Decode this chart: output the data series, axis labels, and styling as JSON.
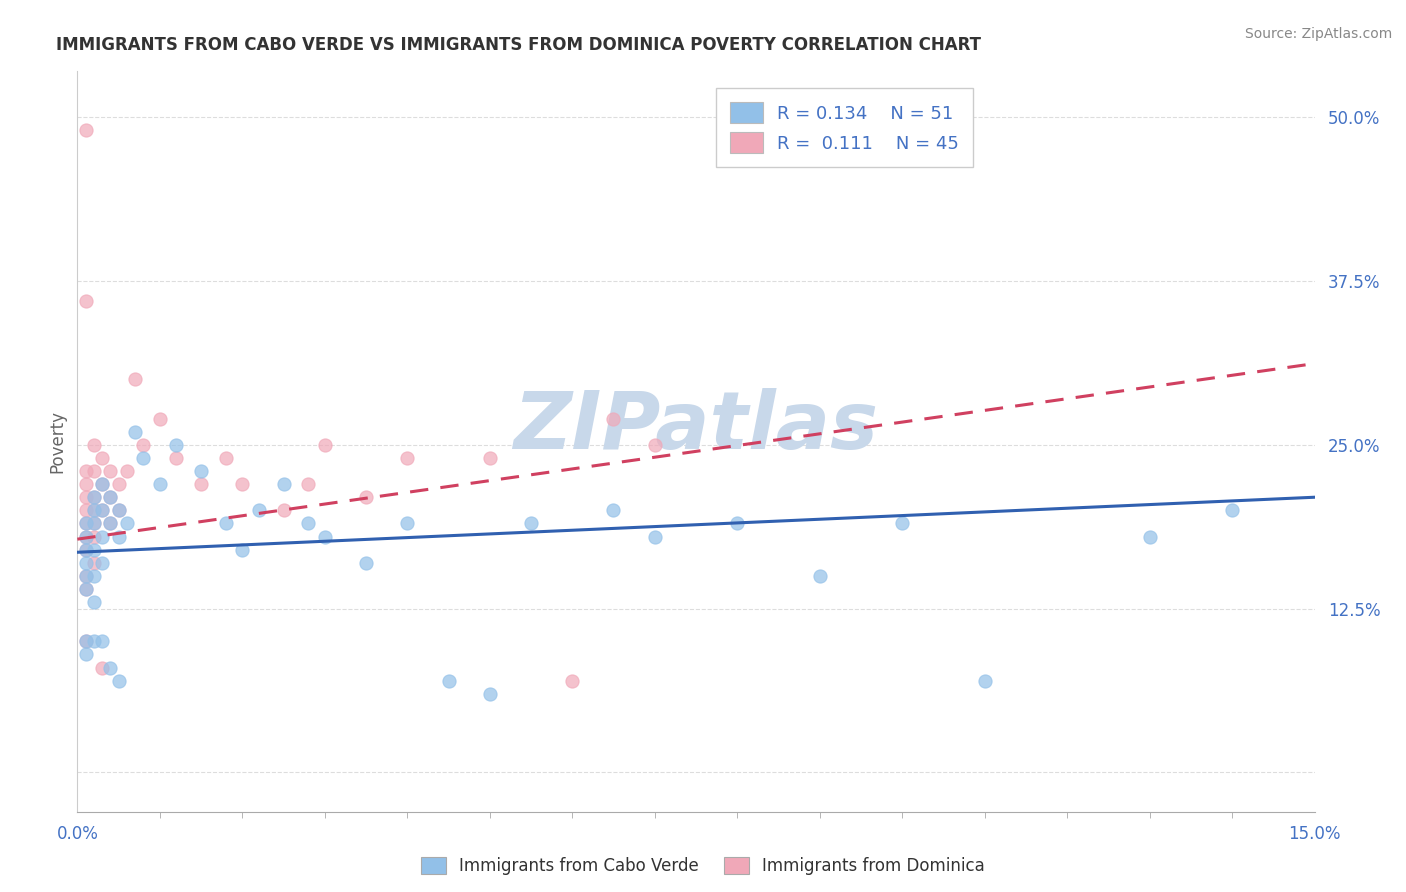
{
  "title": "IMMIGRANTS FROM CABO VERDE VS IMMIGRANTS FROM DOMINICA POVERTY CORRELATION CHART",
  "source": "Source: ZipAtlas.com",
  "ylabel": "Poverty",
  "yticks": [
    0.0,
    0.125,
    0.25,
    0.375,
    0.5
  ],
  "ytick_labels": [
    "",
    "12.5%",
    "25.0%",
    "37.5%",
    "50.0%"
  ],
  "xlim": [
    0.0,
    0.15
  ],
  "ylim": [
    -0.03,
    0.535
  ],
  "legend_R1": "0.134",
  "legend_N1": "51",
  "legend_R2": "0.111",
  "legend_N2": "45",
  "blue_color": "#92c0e8",
  "pink_color": "#f0a8b8",
  "blue_line_color": "#3060b0",
  "pink_line_color": "#d04060",
  "watermark": "ZIPatlas",
  "watermark_color": "#c8d8ea",
  "bg_color": "#ffffff",
  "grid_color": "#dddddd",
  "cabo_verde_x": [
    0.001,
    0.001,
    0.001,
    0.001,
    0.001,
    0.001,
    0.001,
    0.001,
    0.002,
    0.002,
    0.002,
    0.002,
    0.002,
    0.002,
    0.002,
    0.003,
    0.003,
    0.003,
    0.003,
    0.003,
    0.004,
    0.004,
    0.004,
    0.005,
    0.005,
    0.005,
    0.006,
    0.007,
    0.008,
    0.01,
    0.012,
    0.015,
    0.018,
    0.02,
    0.022,
    0.025,
    0.028,
    0.03,
    0.035,
    0.04,
    0.045,
    0.05,
    0.055,
    0.065,
    0.07,
    0.08,
    0.09,
    0.1,
    0.11,
    0.13,
    0.14
  ],
  "cabo_verde_y": [
    0.19,
    0.18,
    0.17,
    0.16,
    0.15,
    0.14,
    0.1,
    0.09,
    0.21,
    0.2,
    0.19,
    0.17,
    0.15,
    0.13,
    0.1,
    0.22,
    0.2,
    0.18,
    0.16,
    0.1,
    0.21,
    0.19,
    0.08,
    0.2,
    0.18,
    0.07,
    0.19,
    0.26,
    0.24,
    0.22,
    0.25,
    0.23,
    0.19,
    0.17,
    0.2,
    0.22,
    0.19,
    0.18,
    0.16,
    0.19,
    0.07,
    0.06,
    0.19,
    0.2,
    0.18,
    0.19,
    0.15,
    0.19,
    0.07,
    0.18,
    0.2
  ],
  "dominica_x": [
    0.001,
    0.001,
    0.001,
    0.001,
    0.001,
    0.001,
    0.001,
    0.001,
    0.001,
    0.001,
    0.001,
    0.002,
    0.002,
    0.002,
    0.002,
    0.002,
    0.002,
    0.002,
    0.003,
    0.003,
    0.003,
    0.003,
    0.004,
    0.004,
    0.004,
    0.005,
    0.005,
    0.006,
    0.007,
    0.008,
    0.01,
    0.012,
    0.015,
    0.018,
    0.02,
    0.025,
    0.028,
    0.03,
    0.035,
    0.04,
    0.05,
    0.06,
    0.065,
    0.07,
    0.001
  ],
  "dominica_y": [
    0.49,
    0.23,
    0.22,
    0.21,
    0.2,
    0.19,
    0.18,
    0.17,
    0.15,
    0.14,
    0.1,
    0.25,
    0.23,
    0.21,
    0.2,
    0.19,
    0.18,
    0.16,
    0.24,
    0.22,
    0.2,
    0.08,
    0.23,
    0.21,
    0.19,
    0.22,
    0.2,
    0.23,
    0.3,
    0.25,
    0.27,
    0.24,
    0.22,
    0.24,
    0.22,
    0.2,
    0.22,
    0.25,
    0.21,
    0.24,
    0.24,
    0.07,
    0.27,
    0.25,
    0.36
  ],
  "legend_label1": "Immigrants from Cabo Verde",
  "legend_label2": "Immigrants from Dominica"
}
